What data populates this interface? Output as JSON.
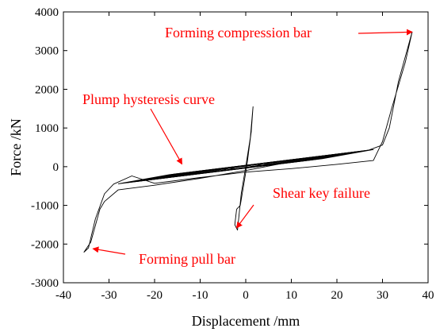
{
  "chart_data": {
    "type": "line",
    "title": "",
    "xlabel": "Displacement /mm",
    "ylabel": "Force /kN",
    "xlim": [
      -40,
      40
    ],
    "ylim": [
      -3000,
      4000
    ],
    "xticks": [
      -40,
      -30,
      -20,
      -10,
      0,
      10,
      20,
      30,
      40
    ],
    "yticks": [
      -3000,
      -2000,
      -1000,
      0,
      1000,
      2000,
      3000,
      4000
    ],
    "grid": false,
    "line_color": "#000000",
    "series": [
      {
        "envelope": [
          [
            -35.5,
            -2210
          ],
          [
            -34,
            -1950
          ],
          [
            -32,
            -1100
          ],
          [
            -31,
            -900
          ],
          [
            -28,
            -600
          ],
          [
            -20,
            -480
          ],
          [
            -10,
            -300
          ],
          [
            0,
            -100
          ],
          [
            10,
            130
          ],
          [
            20,
            300
          ],
          [
            27,
            430
          ],
          [
            30,
            560
          ],
          [
            31.5,
            1000
          ],
          [
            33.5,
            2200
          ],
          [
            36.5,
            3480
          ],
          [
            35,
            2700
          ],
          [
            32,
            1500
          ],
          [
            30,
            650
          ],
          [
            28,
            160
          ],
          [
            20,
            60
          ],
          [
            10,
            -50
          ],
          [
            0,
            -140
          ],
          [
            -10,
            -280
          ],
          [
            -20,
            -430
          ],
          [
            -25,
            -240
          ],
          [
            -29,
            -450
          ],
          [
            -31,
            -700
          ],
          [
            -33,
            -1350
          ],
          [
            -34.5,
            -2100
          ]
        ],
        "hysteresis_amplitudes": [
          4,
          6,
          8,
          10,
          12,
          14,
          16,
          18,
          20,
          22,
          24,
          26,
          28
        ],
        "spike": [
          [
            -2,
            -1100
          ],
          [
            -2.4,
            -1500
          ],
          [
            -1.8,
            -1640
          ],
          [
            -1,
            -700
          ],
          [
            0,
            0
          ],
          [
            1,
            750
          ],
          [
            1.6,
            1550
          ],
          [
            1.2,
            900
          ],
          [
            0.2,
            0
          ],
          [
            -1.2,
            -1000
          ],
          [
            -2,
            -1100
          ]
        ]
      }
    ],
    "annotations": [
      {
        "text": "Forming compression bar",
        "color": "#ff0000",
        "points_to": [
          36.5,
          3480
        ]
      },
      {
        "text": "Plump hysteresis curve",
        "color": "#ff0000",
        "points_to": [
          -14,
          70
        ]
      },
      {
        "text": "Shear key failure",
        "color": "#ff0000",
        "points_to": [
          -2,
          -1580
        ]
      },
      {
        "text": "Forming pull bar",
        "color": "#ff0000",
        "points_to": [
          -33.5,
          -2120
        ]
      }
    ]
  }
}
